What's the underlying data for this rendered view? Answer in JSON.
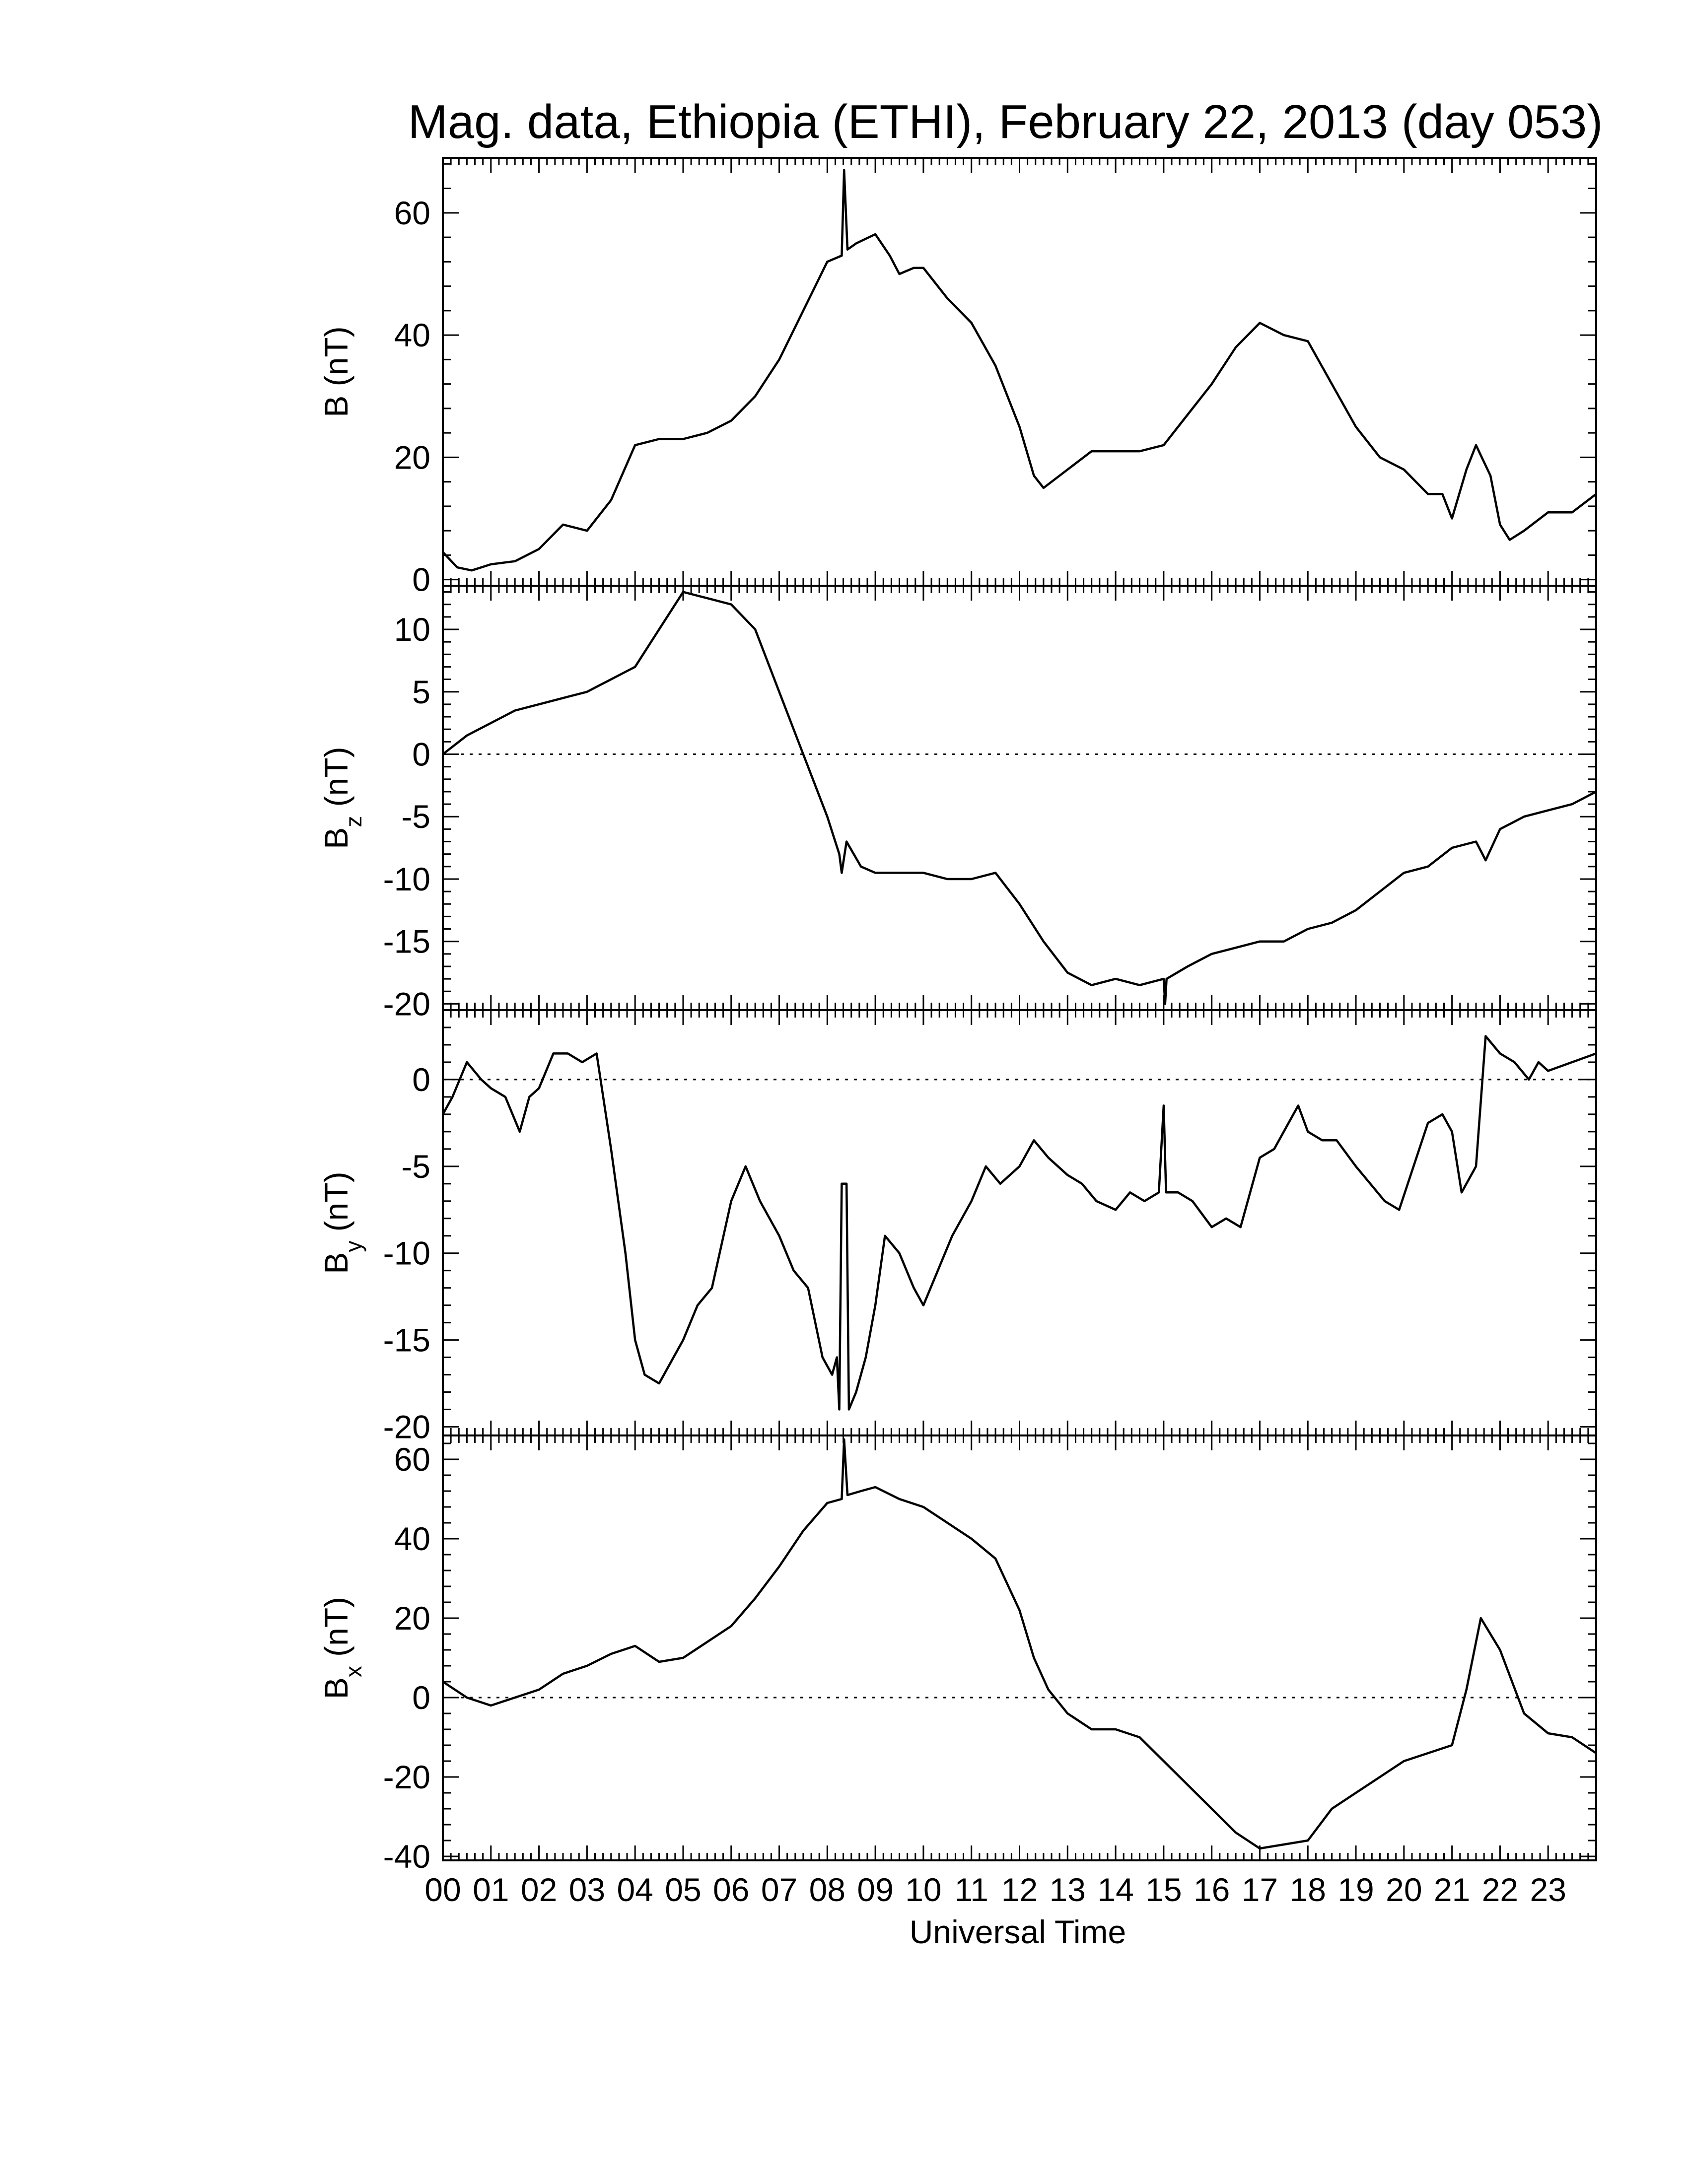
{
  "chart_data": {
    "type": "line",
    "title": "Mag. data, Ethiopia (ETHI), February 22, 2013 (day 053)",
    "xlabel": "Universal Time",
    "xlim": [
      0,
      24
    ],
    "x_tick_labels": [
      "00",
      "01",
      "02",
      "03",
      "04",
      "05",
      "06",
      "07",
      "08",
      "09",
      "10",
      "11",
      "12",
      "13",
      "14",
      "15",
      "16",
      "17",
      "18",
      "19",
      "20",
      "21",
      "22",
      "23"
    ],
    "panels": [
      {
        "id": "B",
        "ylabel": "B (nT)",
        "ylabel_main": "B",
        "ylabel_sub": "",
        "ylabel_unit": " (nT)",
        "ylim": [
          -1,
          69
        ],
        "yticks": [
          0,
          20,
          40,
          60
        ],
        "zero_line": false,
        "points": [
          [
            0,
            4.5
          ],
          [
            0.3,
            2
          ],
          [
            0.6,
            1.5
          ],
          [
            1,
            2.5
          ],
          [
            1.5,
            3
          ],
          [
            2,
            5
          ],
          [
            2.5,
            9
          ],
          [
            3,
            8
          ],
          [
            3.5,
            13
          ],
          [
            4,
            22
          ],
          [
            4.5,
            23
          ],
          [
            5,
            23
          ],
          [
            5.5,
            24
          ],
          [
            6,
            26
          ],
          [
            6.5,
            30
          ],
          [
            7,
            36
          ],
          [
            7.5,
            44
          ],
          [
            8,
            52
          ],
          [
            8.3,
            53
          ],
          [
            8.35,
            67
          ],
          [
            8.42,
            54
          ],
          [
            8.6,
            55
          ],
          [
            9,
            56.5
          ],
          [
            9.3,
            53
          ],
          [
            9.5,
            50
          ],
          [
            9.8,
            51
          ],
          [
            10,
            51
          ],
          [
            10.5,
            46
          ],
          [
            11,
            42
          ],
          [
            11.5,
            35
          ],
          [
            12,
            25
          ],
          [
            12.3,
            17
          ],
          [
            12.5,
            15
          ],
          [
            13,
            18
          ],
          [
            13.5,
            21
          ],
          [
            14,
            21
          ],
          [
            14.5,
            21
          ],
          [
            15,
            22
          ],
          [
            15.5,
            27
          ],
          [
            16,
            32
          ],
          [
            16.5,
            38
          ],
          [
            17,
            42
          ],
          [
            17.5,
            40
          ],
          [
            18,
            39
          ],
          [
            18.5,
            32
          ],
          [
            19,
            25
          ],
          [
            19.5,
            20
          ],
          [
            20,
            18
          ],
          [
            20.5,
            14
          ],
          [
            20.8,
            14
          ],
          [
            21,
            10
          ],
          [
            21.3,
            18
          ],
          [
            21.5,
            22
          ],
          [
            21.8,
            17
          ],
          [
            22,
            9
          ],
          [
            22.2,
            6.5
          ],
          [
            22.5,
            8
          ],
          [
            23,
            11
          ],
          [
            23.5,
            11
          ],
          [
            24,
            14
          ]
        ]
      },
      {
        "id": "Bz",
        "ylabel": "Bz (nT)",
        "ylabel_main": "B",
        "ylabel_sub": "z",
        "ylabel_unit": " (nT)",
        "ylim": [
          -20.5,
          13.5
        ],
        "yticks": [
          -20,
          -15,
          -10,
          -5,
          0,
          5,
          10
        ],
        "tick_labels": [
          "-20",
          "-15",
          "-10",
          "-5",
          "0",
          "5",
          "10"
        ],
        "zero_line": true,
        "points": [
          [
            0,
            0
          ],
          [
            0.5,
            1.5
          ],
          [
            1,
            2.5
          ],
          [
            1.5,
            3.5
          ],
          [
            2,
            4
          ],
          [
            2.5,
            4.5
          ],
          [
            3,
            5
          ],
          [
            3.5,
            6
          ],
          [
            4,
            7
          ],
          [
            4.5,
            10
          ],
          [
            5,
            13
          ],
          [
            5.5,
            12.5
          ],
          [
            6,
            12
          ],
          [
            6.5,
            10
          ],
          [
            7,
            5
          ],
          [
            7.5,
            0
          ],
          [
            8,
            -5
          ],
          [
            8.25,
            -8
          ],
          [
            8.3,
            -9.5
          ],
          [
            8.4,
            -7
          ],
          [
            8.7,
            -9
          ],
          [
            9,
            -9.5
          ],
          [
            9.5,
            -9.5
          ],
          [
            10,
            -9.5
          ],
          [
            10.5,
            -10
          ],
          [
            11,
            -10
          ],
          [
            11.5,
            -9.5
          ],
          [
            12,
            -12
          ],
          [
            12.5,
            -15
          ],
          [
            13,
            -17.5
          ],
          [
            13.5,
            -18.5
          ],
          [
            14,
            -18
          ],
          [
            14.5,
            -18.5
          ],
          [
            15,
            -18
          ],
          [
            15.03,
            -20
          ],
          [
            15.06,
            -18
          ],
          [
            15.5,
            -17
          ],
          [
            16,
            -16
          ],
          [
            16.5,
            -15.5
          ],
          [
            17,
            -15
          ],
          [
            17.5,
            -15
          ],
          [
            18,
            -14
          ],
          [
            18.5,
            -13.5
          ],
          [
            19,
            -12.5
          ],
          [
            19.5,
            -11
          ],
          [
            20,
            -9.5
          ],
          [
            20.5,
            -9
          ],
          [
            21,
            -7.5
          ],
          [
            21.5,
            -7
          ],
          [
            21.7,
            -8.5
          ],
          [
            22,
            -6
          ],
          [
            22.5,
            -5
          ],
          [
            23,
            -4.5
          ],
          [
            23.5,
            -4
          ],
          [
            24,
            -3
          ]
        ]
      },
      {
        "id": "By",
        "ylabel": "By (nT)",
        "ylabel_main": "B",
        "ylabel_sub": "y",
        "ylabel_unit": " (nT)",
        "ylim": [
          -20.5,
          4
        ],
        "yticks": [
          -20,
          -15,
          -10,
          -5,
          0
        ],
        "tick_labels": [
          "-20",
          "-15",
          "-10",
          "-5",
          "0"
        ],
        "zero_line": true,
        "points": [
          [
            0,
            -2
          ],
          [
            0.2,
            -1
          ],
          [
            0.5,
            1
          ],
          [
            0.8,
            0
          ],
          [
            1,
            -0.5
          ],
          [
            1.3,
            -1
          ],
          [
            1.6,
            -3
          ],
          [
            1.8,
            -1
          ],
          [
            2,
            -0.5
          ],
          [
            2.3,
            1.5
          ],
          [
            2.6,
            1.5
          ],
          [
            2.9,
            1
          ],
          [
            3.2,
            1.5
          ],
          [
            3.5,
            -4
          ],
          [
            3.8,
            -10
          ],
          [
            4,
            -15
          ],
          [
            4.2,
            -17
          ],
          [
            4.5,
            -17.5
          ],
          [
            4.8,
            -16
          ],
          [
            5,
            -15
          ],
          [
            5.3,
            -13
          ],
          [
            5.6,
            -12
          ],
          [
            6,
            -7
          ],
          [
            6.3,
            -5
          ],
          [
            6.6,
            -7
          ],
          [
            7,
            -9
          ],
          [
            7.3,
            -11
          ],
          [
            7.6,
            -12
          ],
          [
            7.9,
            -16
          ],
          [
            8.1,
            -17
          ],
          [
            8.2,
            -16
          ],
          [
            8.25,
            -19
          ],
          [
            8.3,
            -6
          ],
          [
            8.4,
            -6
          ],
          [
            8.45,
            -19
          ],
          [
            8.6,
            -18
          ],
          [
            8.8,
            -16
          ],
          [
            9,
            -13
          ],
          [
            9.2,
            -9
          ],
          [
            9.5,
            -10
          ],
          [
            9.8,
            -12
          ],
          [
            10,
            -13
          ],
          [
            10.3,
            -11
          ],
          [
            10.6,
            -9
          ],
          [
            11,
            -7
          ],
          [
            11.3,
            -5
          ],
          [
            11.6,
            -6
          ],
          [
            12,
            -5
          ],
          [
            12.3,
            -3.5
          ],
          [
            12.6,
            -4.5
          ],
          [
            13,
            -5.5
          ],
          [
            13.3,
            -6
          ],
          [
            13.6,
            -7
          ],
          [
            14,
            -7.5
          ],
          [
            14.3,
            -6.5
          ],
          [
            14.6,
            -7
          ],
          [
            14.9,
            -6.5
          ],
          [
            15,
            -1.5
          ],
          [
            15.05,
            -6.5
          ],
          [
            15.3,
            -6.5
          ],
          [
            15.6,
            -7
          ],
          [
            16,
            -8.5
          ],
          [
            16.3,
            -8
          ],
          [
            16.6,
            -8.5
          ],
          [
            17,
            -4.5
          ],
          [
            17.3,
            -4
          ],
          [
            17.6,
            -2.5
          ],
          [
            17.8,
            -1.5
          ],
          [
            18,
            -3
          ],
          [
            18.3,
            -3.5
          ],
          [
            18.6,
            -3.5
          ],
          [
            19,
            -5
          ],
          [
            19.3,
            -6
          ],
          [
            19.6,
            -7
          ],
          [
            19.9,
            -7.5
          ],
          [
            20.2,
            -5
          ],
          [
            20.5,
            -2.5
          ],
          [
            20.8,
            -2
          ],
          [
            21,
            -3
          ],
          [
            21.2,
            -6.5
          ],
          [
            21.5,
            -5
          ],
          [
            21.7,
            2.5
          ],
          [
            22,
            1.5
          ],
          [
            22.3,
            1
          ],
          [
            22.6,
            0
          ],
          [
            22.8,
            1
          ],
          [
            23,
            0.5
          ],
          [
            23.5,
            1
          ],
          [
            24,
            1.5
          ]
        ]
      },
      {
        "id": "Bx",
        "ylabel": "Bx (nT)",
        "ylabel_main": "B",
        "ylabel_sub": "x",
        "ylabel_unit": " (nT)",
        "ylim": [
          -41,
          66
        ],
        "yticks": [
          -40,
          -20,
          0,
          20,
          40,
          60
        ],
        "tick_labels": [
          "-40",
          "-20",
          "0",
          "20",
          "40",
          "60"
        ],
        "zero_line": true,
        "points": [
          [
            0,
            4
          ],
          [
            0.5,
            0
          ],
          [
            1,
            -2
          ],
          [
            1.5,
            0
          ],
          [
            2,
            2
          ],
          [
            2.5,
            6
          ],
          [
            3,
            8
          ],
          [
            3.5,
            11
          ],
          [
            4,
            13
          ],
          [
            4.5,
            9
          ],
          [
            5,
            10
          ],
          [
            5.5,
            14
          ],
          [
            6,
            18
          ],
          [
            6.5,
            25
          ],
          [
            7,
            33
          ],
          [
            7.5,
            42
          ],
          [
            8,
            49
          ],
          [
            8.3,
            50
          ],
          [
            8.35,
            65
          ],
          [
            8.42,
            51
          ],
          [
            8.7,
            52
          ],
          [
            9,
            53
          ],
          [
            9.5,
            50
          ],
          [
            10,
            48
          ],
          [
            10.5,
            44
          ],
          [
            11,
            40
          ],
          [
            11.5,
            35
          ],
          [
            12,
            22
          ],
          [
            12.3,
            10
          ],
          [
            12.6,
            2
          ],
          [
            13,
            -4
          ],
          [
            13.5,
            -8
          ],
          [
            14,
            -8
          ],
          [
            14.5,
            -10
          ],
          [
            15,
            -16
          ],
          [
            15.5,
            -22
          ],
          [
            16,
            -28
          ],
          [
            16.5,
            -34
          ],
          [
            17,
            -38
          ],
          [
            17.5,
            -37
          ],
          [
            18,
            -36
          ],
          [
            18.5,
            -28
          ],
          [
            19,
            -24
          ],
          [
            19.5,
            -20
          ],
          [
            20,
            -16
          ],
          [
            20.5,
            -14
          ],
          [
            21,
            -12
          ],
          [
            21.3,
            2
          ],
          [
            21.6,
            20
          ],
          [
            22,
            12
          ],
          [
            22.5,
            -4
          ],
          [
            23,
            -9
          ],
          [
            23.5,
            -10
          ],
          [
            24,
            -14
          ]
        ]
      }
    ]
  }
}
